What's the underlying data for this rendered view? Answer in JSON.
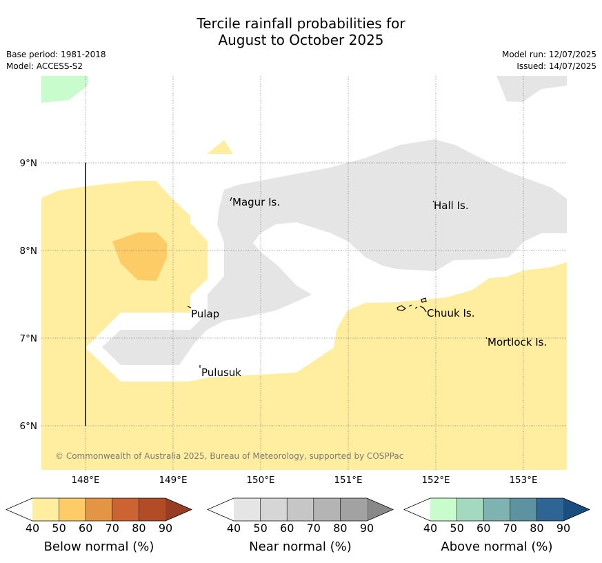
{
  "title_line1": "Tercile rainfall probabilities for",
  "title_line2": "August to October 2025",
  "meta_left": [
    "Base period: 1981-2018",
    "Model: ACCESS-S2"
  ],
  "meta_right": [
    "Model run: 12/07/2025",
    "Issued: 14/07/2025"
  ],
  "map": {
    "lon_labels": [
      "148°E",
      "149°E",
      "150°E",
      "151°E",
      "152°E",
      "153°E"
    ],
    "lat_labels": [
      "9°N",
      "8°N",
      "7°N",
      "6°N"
    ],
    "places": [
      "Magur Is.",
      "Hall Is.",
      "Pulap",
      "Chuuk Is.",
      "Mortlock Is.",
      "Pulusuk"
    ],
    "copyright": "© Commonwealth of Australia 2025, Bureau of Meteorology, supported by COSPPac"
  },
  "colorbars": [
    {
      "title": "Below normal (%)",
      "ticks": [
        "40",
        "50",
        "60",
        "70",
        "80",
        "90"
      ],
      "colors": [
        "#ffeda0",
        "#fecc66",
        "#e39545",
        "#cb6332",
        "#b24c26",
        "#973d24"
      ]
    },
    {
      "title": "Near normal (%)",
      "ticks": [
        "40",
        "50",
        "60",
        "70",
        "80",
        "90"
      ],
      "colors": [
        "#e5e5e5",
        "#d6d6d6",
        "#c6c6c6",
        "#b4b4b4",
        "#a2a2a2",
        "#888888"
      ]
    },
    {
      "title": "Above normal (%)",
      "ticks": [
        "40",
        "50",
        "60",
        "70",
        "80",
        "90"
      ],
      "colors": [
        "#c8fccc",
        "#a3d9be",
        "#7fb3b1",
        "#5d93a1",
        "#2e6595",
        "#194e7e"
      ]
    }
  ]
}
